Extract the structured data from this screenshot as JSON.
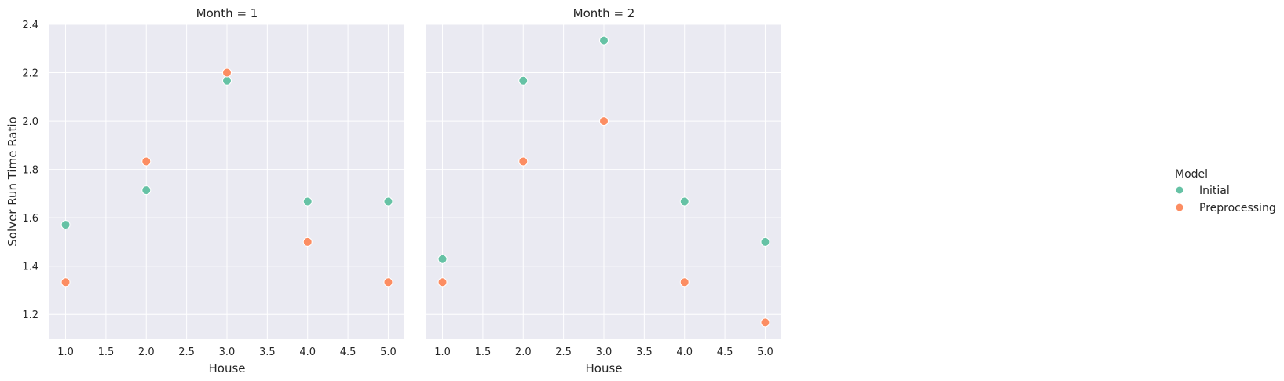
{
  "chart_data": [
    {
      "type": "scatter",
      "title": "Month = 1",
      "xlabel": "House",
      "ylabel": "Solver Run Time Ratio",
      "xlim": [
        0.8,
        5.2
      ],
      "ylim": [
        1.1,
        2.4
      ],
      "xticks": [
        "1.0",
        "1.5",
        "2.0",
        "2.5",
        "3.0",
        "3.5",
        "4.0",
        "4.5",
        "5.0"
      ],
      "yticks": [
        "1.2",
        "1.4",
        "1.6",
        "1.8",
        "2.0",
        "2.2",
        "2.4"
      ],
      "grid": true,
      "series": [
        {
          "name": "Initial",
          "color": "#66c2a5",
          "x": [
            1,
            2,
            3,
            4,
            5
          ],
          "y": [
            1.571,
            1.714,
            2.167,
            1.667,
            1.667
          ]
        },
        {
          "name": "Preprocessing",
          "color": "#fc8d62",
          "x": [
            1,
            2,
            3,
            4,
            5
          ],
          "y": [
            1.333,
            1.833,
            2.2,
            1.5,
            1.333
          ]
        }
      ]
    },
    {
      "type": "scatter",
      "title": "Month = 2",
      "xlabel": "House",
      "ylabel": "",
      "xlim": [
        0.8,
        5.2
      ],
      "ylim": [
        1.1,
        2.4
      ],
      "xticks": [
        "1.0",
        "1.5",
        "2.0",
        "2.5",
        "3.0",
        "3.5",
        "4.0",
        "4.5",
        "5.0"
      ],
      "yticks": [],
      "grid": true,
      "series": [
        {
          "name": "Initial",
          "color": "#66c2a5",
          "x": [
            1,
            2,
            3,
            4,
            5
          ],
          "y": [
            1.429,
            2.167,
            2.333,
            1.667,
            1.5
          ]
        },
        {
          "name": "Preprocessing",
          "color": "#fc8d62",
          "x": [
            1,
            2,
            3,
            4,
            5
          ],
          "y": [
            1.333,
            1.833,
            2.0,
            1.333,
            1.167
          ]
        }
      ]
    }
  ],
  "legend": {
    "title": "Model",
    "placement": "right",
    "items": [
      {
        "label": "Initial",
        "color": "#66c2a5"
      },
      {
        "label": "Preprocessing",
        "color": "#fc8d62"
      }
    ]
  },
  "style": {
    "plot_background": "#eaeaf2",
    "grid_color": "#ffffff",
    "marker_edge": "#ffffff"
  }
}
